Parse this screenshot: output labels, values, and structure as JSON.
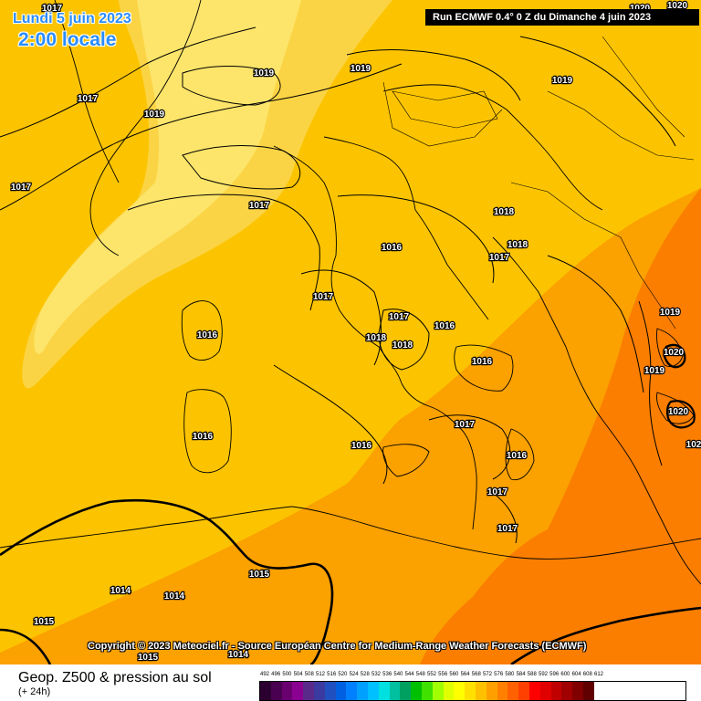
{
  "header": {
    "date": "Lundi 5 juin 2023",
    "local_time": "2:00 locale",
    "run_info": "Run ECMWF 0.4° 0 Z du Dimanche 4 juin 2023"
  },
  "copyright": "Copyright © 2023 Meteociel.fr - Source Européan Centre for Medium-Range Weather Forecasts (ECMWF)",
  "footer": {
    "field": "Geop. Z500 & pression au sol",
    "lead": "(+ 24h)"
  },
  "legend": {
    "values": [
      "492",
      "496",
      "500",
      "504",
      "508",
      "512",
      "516",
      "520",
      "524",
      "528",
      "532",
      "536",
      "540",
      "544",
      "548",
      "552",
      "556",
      "560",
      "564",
      "568",
      "572",
      "576",
      "580",
      "584",
      "588",
      "592",
      "596",
      "600",
      "604",
      "608",
      "612"
    ],
    "colors": [
      "#2b0030",
      "#4a0050",
      "#6a0070",
      "#8a0090",
      "#5a2a8a",
      "#3a3aa0",
      "#2050c0",
      "#0060e0",
      "#0080ff",
      "#00a0ff",
      "#00c0ff",
      "#00e0e0",
      "#00c0a0",
      "#00a060",
      "#00c000",
      "#40e000",
      "#a0ff00",
      "#e0ff00",
      "#ffff00",
      "#ffe000",
      "#ffc000",
      "#ffa000",
      "#ff8000",
      "#ff6000",
      "#ff4000",
      "#ff0000",
      "#e00000",
      "#c00000",
      "#a00000",
      "#800000",
      "#600000"
    ]
  },
  "map_labels": [
    {
      "text": "1017"
    },
    {
      "text": "1017"
    },
    {
      "text": "1019"
    },
    {
      "text": "1017"
    },
    {
      "text": "1019"
    },
    {
      "text": "1019"
    },
    {
      "text": "1019"
    },
    {
      "text": "1020"
    },
    {
      "text": "1020"
    },
    {
      "text": "1017"
    },
    {
      "text": "1016"
    },
    {
      "text": "1018"
    },
    {
      "text": "1018"
    },
    {
      "text": "1017"
    },
    {
      "text": "1017"
    },
    {
      "text": "1017"
    },
    {
      "text": "1016"
    },
    {
      "text": "1018"
    },
    {
      "text": "1018"
    },
    {
      "text": "1016"
    },
    {
      "text": "1016"
    },
    {
      "text": "1019"
    },
    {
      "text": "1020"
    },
    {
      "text": "1019"
    },
    {
      "text": "1020"
    },
    {
      "text": "1016"
    },
    {
      "text": "1017"
    },
    {
      "text": "1016"
    },
    {
      "text": "1016"
    },
    {
      "text": "1017"
    },
    {
      "text": "1017"
    },
    {
      "text": "102"
    },
    {
      "text": "1015"
    },
    {
      "text": "1014"
    },
    {
      "text": "1014"
    },
    {
      "text": "1015"
    },
    {
      "text": "1015"
    },
    {
      "text": "1014"
    }
  ]
}
